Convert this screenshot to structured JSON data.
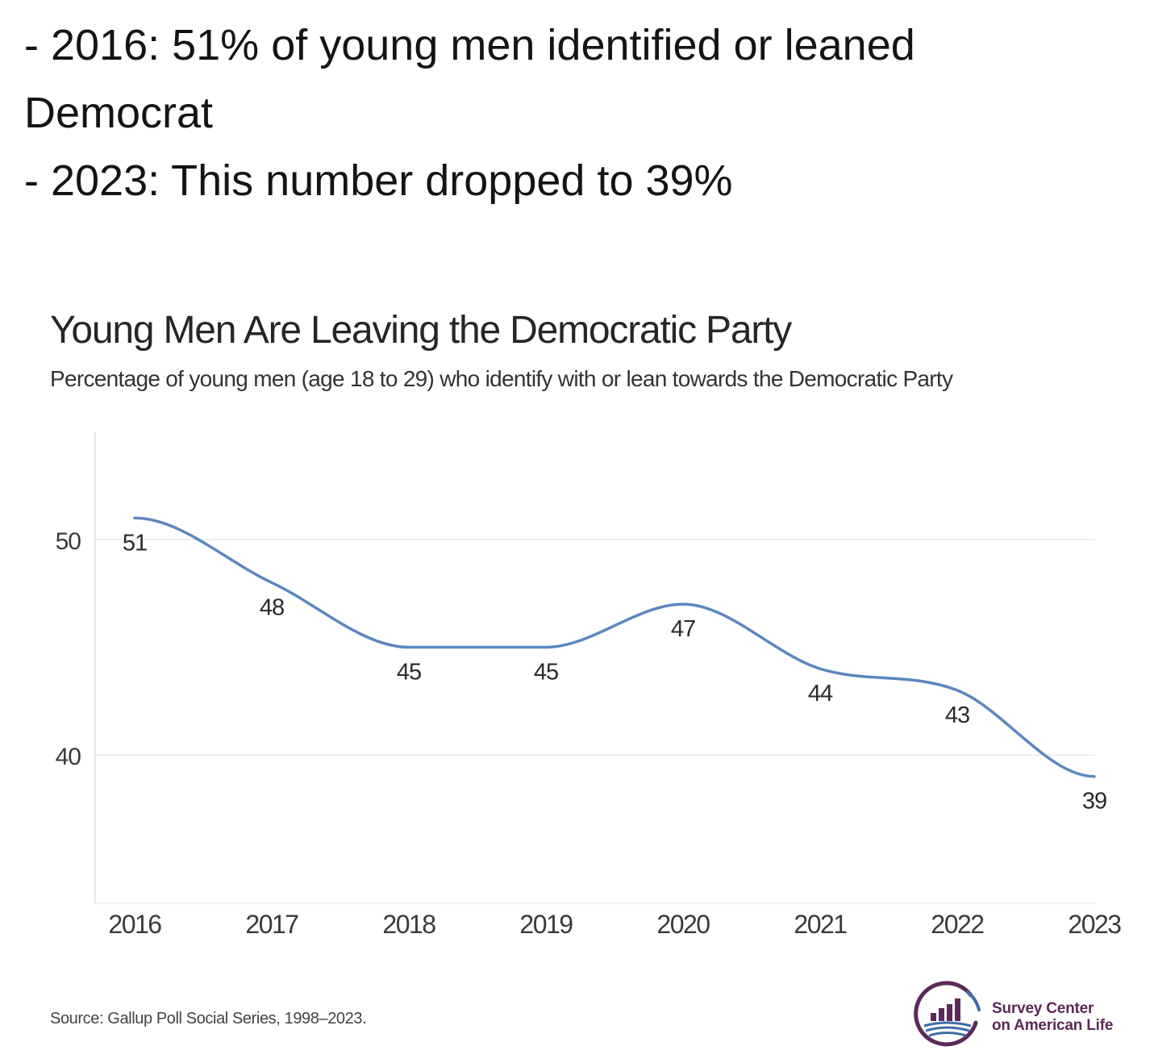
{
  "post": {
    "lines": [
      "- 2016: 51% of young men identified or leaned",
      "Democrat",
      "- 2023: This number dropped to 39%"
    ]
  },
  "chart_data": {
    "type": "line",
    "title": "Young Men Are Leaving the Democratic Party",
    "subtitle": "Percentage of young men (age 18 to 29) who identify with or lean towards the Democratic Party",
    "xlabel": "",
    "ylabel": "",
    "categories": [
      "2016",
      "2017",
      "2018",
      "2019",
      "2020",
      "2021",
      "2022",
      "2023"
    ],
    "series": [
      {
        "values": [
          51,
          48,
          45,
          45,
          47,
          44,
          43,
          39
        ],
        "color": "#5b87bf"
      }
    ],
    "yticks": [
      40,
      50
    ],
    "ylim": [
      33,
      55
    ],
    "grid": true,
    "data_labels": true,
    "legend": "none"
  },
  "footer": {
    "source": "Source: Gallup Poll Social Series, 1998–2023.",
    "logo": {
      "line1": "Survey Center",
      "line2": "on American Life",
      "primary_color": "#5c2a58",
      "accent_color": "#3d6ea6"
    }
  }
}
